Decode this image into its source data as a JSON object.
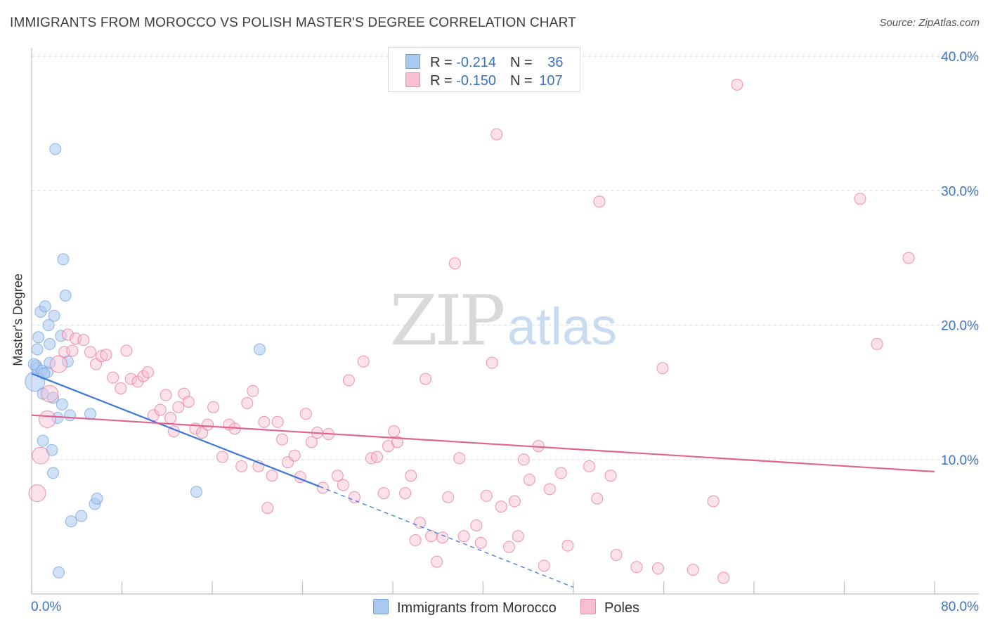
{
  "title": "IMMIGRANTS FROM MOROCCO VS POLISH MASTER'S DEGREE CORRELATION CHART",
  "source": "Source: ZipAtlas.com",
  "watermark": {
    "zip": "ZIP",
    "atlas": "atlas"
  },
  "legend": {
    "rows": [
      {
        "r_label": "R = ",
        "r_value": "-0.214",
        "n_label": "N = ",
        "n_value": "36",
        "color": "#a9c9f0",
        "border": "#6fa0dc"
      },
      {
        "r_label": "R = ",
        "r_value": "-0.150",
        "n_label": "N = ",
        "n_value": "107",
        "color": "#f7bfd0",
        "border": "#e88aa8"
      }
    ]
  },
  "chart_data": {
    "type": "scatter",
    "title": "IMMIGRANTS FROM MOROCCO VS POLISH MASTER'S DEGREE CORRELATION CHART",
    "xlabel": "",
    "ylabel": "Master's Degree",
    "xlim": [
      0,
      80
    ],
    "ylim": [
      0,
      40
    ],
    "x_tick_labels": [
      "0.0%",
      "80.0%"
    ],
    "y_tick_labels": [
      "10.0%",
      "20.0%",
      "30.0%",
      "40.0%"
    ],
    "y_ticks": [
      10,
      20,
      30,
      40
    ],
    "grid": true,
    "legend_position": "bottom",
    "series": [
      {
        "name": "Immigrants from Morocco",
        "color": "#6fa0dc",
        "fill": "#a9c9f0",
        "trend": {
          "x": [
            0,
            25.5
          ],
          "y": [
            16.4,
            8.0
          ],
          "dashed_to": [
            48,
            0.5
          ]
        },
        "points": [
          [
            0.3,
            15.8,
            3
          ],
          [
            0.4,
            17.0,
            1
          ],
          [
            0.5,
            16.8,
            1
          ],
          [
            0.5,
            18.2,
            1
          ],
          [
            0.6,
            19.1,
            1
          ],
          [
            0.8,
            21.0,
            1
          ],
          [
            0.9,
            16.6,
            1
          ],
          [
            1.0,
            11.4,
            1
          ],
          [
            1.0,
            14.9,
            1
          ],
          [
            1.2,
            21.4,
            1
          ],
          [
            1.4,
            16.5,
            1
          ],
          [
            1.5,
            20.0,
            1
          ],
          [
            1.6,
            17.2,
            1
          ],
          [
            1.6,
            18.6,
            1
          ],
          [
            1.8,
            10.7,
            1
          ],
          [
            1.9,
            9.0,
            1
          ],
          [
            1.9,
            14.6,
            1
          ],
          [
            2.0,
            20.7,
            1
          ],
          [
            2.1,
            33.1,
            1
          ],
          [
            2.3,
            13.1,
            1
          ],
          [
            2.4,
            1.6,
            1
          ],
          [
            2.6,
            19.2,
            1
          ],
          [
            2.7,
            14.1,
            1
          ],
          [
            2.8,
            24.9,
            1
          ],
          [
            3.0,
            22.2,
            1
          ],
          [
            3.2,
            17.3,
            1
          ],
          [
            3.4,
            13.3,
            1
          ],
          [
            3.5,
            5.4,
            1
          ],
          [
            4.4,
            5.8,
            1
          ],
          [
            5.2,
            13.4,
            1
          ],
          [
            5.6,
            6.7,
            1
          ],
          [
            5.8,
            7.1,
            1
          ],
          [
            14.6,
            7.6,
            1
          ],
          [
            20.2,
            18.2,
            1
          ],
          [
            0.2,
            17.1,
            1
          ],
          [
            1.1,
            16.4,
            1
          ]
        ]
      },
      {
        "name": "Poles",
        "color": "#e8709a",
        "fill": "#f7bfd0",
        "trend": {
          "x": [
            0,
            80
          ],
          "y": [
            13.3,
            9.1
          ]
        },
        "points": [
          [
            0.5,
            7.5,
            2
          ],
          [
            0.8,
            10.3,
            2
          ],
          [
            1.4,
            13.0,
            2
          ],
          [
            1.6,
            14.9,
            2
          ],
          [
            2.4,
            17.1,
            2
          ],
          [
            2.9,
            18.0,
            1
          ],
          [
            3.2,
            19.3,
            1
          ],
          [
            3.6,
            18.1,
            1
          ],
          [
            3.9,
            19.0,
            1
          ],
          [
            4.6,
            18.9,
            1
          ],
          [
            5.2,
            18.0,
            1
          ],
          [
            5.7,
            17.1,
            1
          ],
          [
            6.2,
            17.7,
            1
          ],
          [
            6.6,
            17.8,
            1
          ],
          [
            7.2,
            16.1,
            1
          ],
          [
            7.9,
            15.3,
            1
          ],
          [
            8.4,
            18.1,
            1
          ],
          [
            8.8,
            16.0,
            1
          ],
          [
            9.4,
            15.8,
            1
          ],
          [
            9.9,
            16.2,
            1
          ],
          [
            10.3,
            16.5,
            1
          ],
          [
            10.8,
            13.3,
            1
          ],
          [
            11.4,
            13.7,
            1
          ],
          [
            11.9,
            14.8,
            1
          ],
          [
            12.3,
            13.1,
            1
          ],
          [
            12.6,
            12.1,
            1
          ],
          [
            13.0,
            13.9,
            1
          ],
          [
            13.5,
            14.9,
            1
          ],
          [
            13.9,
            14.3,
            1
          ],
          [
            14.5,
            12.3,
            1
          ],
          [
            15.1,
            12.0,
            1
          ],
          [
            15.6,
            12.6,
            1
          ],
          [
            16.1,
            13.9,
            1
          ],
          [
            16.9,
            10.2,
            1
          ],
          [
            17.5,
            12.6,
            1
          ],
          [
            18.0,
            12.3,
            1
          ],
          [
            18.6,
            9.5,
            1
          ],
          [
            19.1,
            14.2,
            1
          ],
          [
            19.6,
            15.1,
            1
          ],
          [
            20.1,
            9.5,
            1
          ],
          [
            20.6,
            12.8,
            1
          ],
          [
            20.9,
            6.4,
            1
          ],
          [
            21.3,
            8.8,
            1
          ],
          [
            21.8,
            12.8,
            1
          ],
          [
            22.2,
            11.5,
            1
          ],
          [
            22.7,
            9.8,
            1
          ],
          [
            23.3,
            10.3,
            1
          ],
          [
            23.8,
            8.7,
            1
          ],
          [
            24.3,
            13.4,
            1
          ],
          [
            24.8,
            11.3,
            1
          ],
          [
            25.3,
            12.0,
            1
          ],
          [
            25.8,
            7.9,
            1
          ],
          [
            26.3,
            11.9,
            1
          ],
          [
            27.1,
            8.8,
            1
          ],
          [
            27.6,
            8.1,
            1
          ],
          [
            28.1,
            15.9,
            1
          ],
          [
            28.6,
            7.2,
            1
          ],
          [
            29.4,
            17.3,
            1
          ],
          [
            30.1,
            10.1,
            1
          ],
          [
            30.6,
            10.2,
            1
          ],
          [
            31.2,
            7.5,
            1
          ],
          [
            31.6,
            11.0,
            1
          ],
          [
            32.1,
            12.1,
            1
          ],
          [
            32.4,
            11.3,
            1
          ],
          [
            33.1,
            7.5,
            1
          ],
          [
            33.6,
            8.8,
            1
          ],
          [
            34.0,
            4.0,
            1
          ],
          [
            34.4,
            5.3,
            1
          ],
          [
            34.9,
            16.0,
            1
          ],
          [
            35.4,
            4.3,
            1
          ],
          [
            35.9,
            2.4,
            1
          ],
          [
            36.4,
            4.2,
            1
          ],
          [
            36.9,
            7.2,
            1
          ],
          [
            37.5,
            24.6,
            1
          ],
          [
            37.9,
            10.1,
            1
          ],
          [
            38.3,
            4.3,
            1
          ],
          [
            39.4,
            5.1,
            1
          ],
          [
            39.8,
            3.8,
            1
          ],
          [
            40.3,
            7.3,
            1
          ],
          [
            40.8,
            17.2,
            1
          ],
          [
            41.2,
            34.2,
            1
          ],
          [
            41.6,
            6.5,
            1
          ],
          [
            42.3,
            3.5,
            1
          ],
          [
            42.8,
            6.9,
            1
          ],
          [
            43.1,
            4.3,
            1
          ],
          [
            43.6,
            10.0,
            1
          ],
          [
            44.1,
            8.5,
            1
          ],
          [
            44.9,
            11.0,
            1
          ],
          [
            45.4,
            2.1,
            1
          ],
          [
            45.9,
            7.8,
            1
          ],
          [
            46.9,
            9.0,
            1
          ],
          [
            47.5,
            3.6,
            1
          ],
          [
            49.4,
            9.5,
            1
          ],
          [
            50.1,
            7.1,
            1
          ],
          [
            50.3,
            29.2,
            1
          ],
          [
            51.3,
            8.8,
            1
          ],
          [
            51.8,
            2.9,
            1
          ],
          [
            53.6,
            2.0,
            1
          ],
          [
            55.5,
            1.9,
            1
          ],
          [
            55.9,
            16.8,
            1
          ],
          [
            58.6,
            1.8,
            1
          ],
          [
            60.4,
            6.9,
            1
          ],
          [
            61.3,
            1.2,
            1
          ],
          [
            62.5,
            37.9,
            1
          ],
          [
            73.4,
            29.4,
            1
          ],
          [
            74.9,
            18.6,
            1
          ],
          [
            77.7,
            25.0,
            1
          ]
        ]
      }
    ]
  }
}
